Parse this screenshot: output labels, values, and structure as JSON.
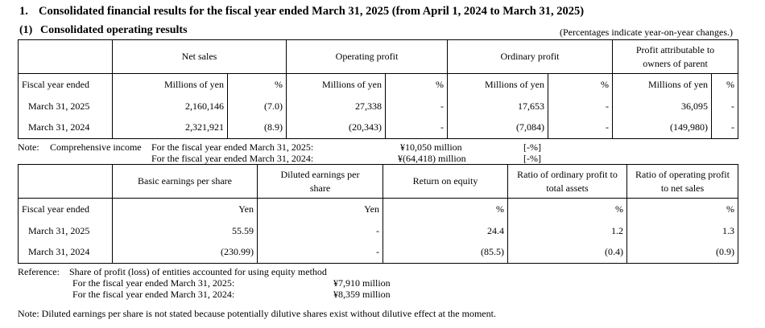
{
  "heading": {
    "number": "1.",
    "title": "Consolidated financial results for the fiscal year ended March 31, 2025 (from April 1, 2024 to March 31, 2025)",
    "sub_number": "(1)",
    "sub_title": "Consolidated operating results",
    "percent_note": "(Percentages indicate year-on-year changes.)"
  },
  "table1": {
    "headers": [
      "Net sales",
      "Operating profit",
      "Ordinary profit",
      "Profit attributable to owners of parent"
    ],
    "row_label": "Fiscal year ended",
    "units": [
      "Millions of yen",
      "%",
      "Millions of yen",
      "%",
      "Millions of yen",
      "%",
      "Millions of yen",
      "%"
    ],
    "rows": [
      {
        "label": "March 31, 2025",
        "cells": [
          "2,160,146",
          "(7.0)",
          "27,338",
          "-",
          "17,653",
          "-",
          "36,095",
          "-"
        ]
      },
      {
        "label": "March 31, 2024",
        "cells": [
          "2,321,921",
          "(8.9)",
          "(20,343)",
          "-",
          "(7,084)",
          "-",
          "(149,980)",
          "-"
        ]
      }
    ]
  },
  "comprehensive_note": {
    "prefix": "Note:",
    "label": "Comprehensive income",
    "line1_text": "For the fiscal year ended March 31, 2025:",
    "line1_value": "¥10,050 million",
    "line1_pct": "[-%]",
    "line2_text": "For the fiscal year ended March 31, 2024:",
    "line2_value": "¥(64,418) million",
    "line2_pct": "[-%]"
  },
  "table2": {
    "headers": [
      "Basic earnings per share",
      "Diluted earnings per share",
      "Return on equity",
      "Ratio of ordinary profit to total assets",
      "Ratio of operating profit to net sales"
    ],
    "row_label": "Fiscal year ended",
    "units": [
      "Yen",
      "Yen",
      "%",
      "%",
      "%"
    ],
    "rows": [
      {
        "label": "March 31, 2025",
        "cells": [
          "55.59",
          "-",
          "24.4",
          "1.2",
          "1.3"
        ]
      },
      {
        "label": "March 31, 2024",
        "cells": [
          "(230.99)",
          "-",
          "(85.5)",
          "(0.4)",
          "(0.9)"
        ]
      }
    ]
  },
  "reference": {
    "prefix": "Reference:",
    "title": "Share of profit (loss) of entities accounted for using equity method",
    "line1_text": "For the fiscal year ended March 31, 2025:",
    "line1_value": "¥7,910 million",
    "line2_text": "For the fiscal year ended March 31, 2024:",
    "line2_value": "¥8,359 million"
  },
  "footnote": "Note: Diluted earnings per share is not stated because potentially dilutive shares exist without dilutive effect at the moment."
}
